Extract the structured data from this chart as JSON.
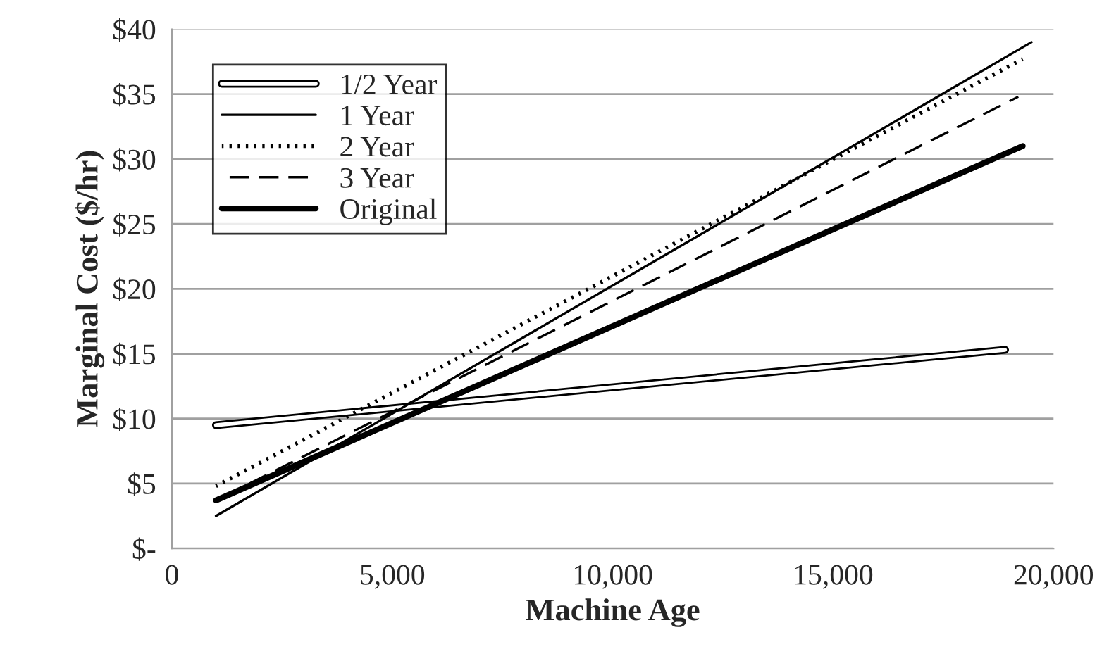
{
  "chart_data": {
    "type": "line",
    "xlabel": "Machine Age",
    "ylabel": "Marginal Cost ($/hr)",
    "xlim": [
      0,
      20000
    ],
    "xticks": [
      0,
      {
        "value": 5000,
        "label": "5,000"
      },
      {
        "value": 10000,
        "label": "10,000"
      },
      {
        "value": 15000,
        "label": "15,000"
      },
      {
        "value": 20000,
        "label": "20,000"
      }
    ],
    "ylim": [
      0,
      40
    ],
    "yticks": [
      {
        "value": 0,
        "label": "$-"
      },
      {
        "value": 5,
        "label": "$5"
      },
      {
        "value": 10,
        "label": "$10"
      },
      {
        "value": 15,
        "label": "$15"
      },
      {
        "value": 20,
        "label": "$20"
      },
      {
        "value": 25,
        "label": "$25"
      },
      {
        "value": 30,
        "label": "$30"
      },
      {
        "value": 35,
        "label": "$35"
      },
      {
        "value": 40,
        "label": "$40"
      }
    ],
    "grid": "y",
    "legend": "top left",
    "series": [
      {
        "name": "1/2 Year",
        "color": "#000000",
        "line_style": "solid",
        "x": [
          1000,
          18900
        ],
        "values": [
          9.5,
          15.3
        ]
      },
      {
        "name": "1 Year",
        "color": "#000000",
        "line_style": "solid",
        "x": [
          1000,
          19500
        ],
        "values": [
          2.5,
          39.0
        ]
      },
      {
        "name": "2 Year",
        "color": "#000000",
        "line_style": "dotted",
        "x": [
          1000,
          19300
        ],
        "values": [
          4.8,
          37.7
        ]
      },
      {
        "name": "3 Year",
        "color": "#000000",
        "line_style": "dashed",
        "x": [
          1000,
          19200
        ],
        "values": [
          3.7,
          34.8
        ]
      },
      {
        "name": "Original",
        "color": "#000000",
        "line_style": "solid",
        "x": [
          1000,
          19300
        ],
        "values": [
          3.7,
          31.0
        ]
      }
    ]
  }
}
